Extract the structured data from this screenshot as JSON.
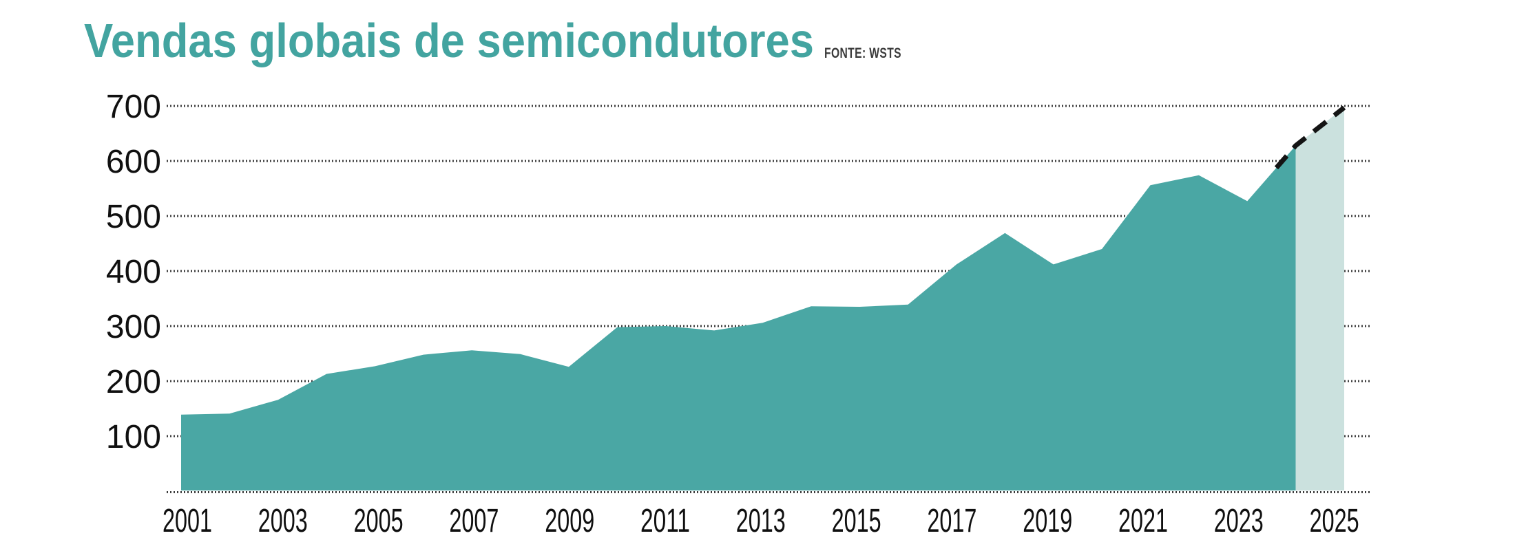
{
  "chart_data": {
    "type": "area",
    "title": "Vendas globais de semicondutores",
    "source": "FONTE: WSTS",
    "years": [
      2001,
      2002,
      2003,
      2004,
      2005,
      2006,
      2007,
      2008,
      2009,
      2010,
      2011,
      2012,
      2013,
      2014,
      2015,
      2016,
      2017,
      2018,
      2019,
      2020,
      2021,
      2022,
      2023,
      2024,
      2025
    ],
    "values": [
      139,
      141,
      166,
      213,
      227,
      248,
      256,
      249,
      226,
      298,
      300,
      292,
      306,
      336,
      335,
      339,
      412,
      469,
      412,
      440,
      556,
      574,
      527,
      628,
      697
    ],
    "actual_through_year": 2024,
    "forecast_years": [
      2025
    ],
    "forecast_style": "lighter shaded area with black dashed line along its top edge",
    "x_tick_labels": [
      "2001",
      "2003",
      "2005",
      "2007",
      "2009",
      "2011",
      "2013",
      "2015",
      "2017",
      "2019",
      "2021",
      "2023",
      "2025"
    ],
    "y_tick_labels": [
      "100",
      "200",
      "300",
      "400",
      "500",
      "600",
      "700"
    ],
    "ylim": [
      0,
      700
    ],
    "grid": "dotted-horizontal",
    "legend": "none",
    "colors": {
      "area_actual": "#4aa7a4",
      "area_forecast": "#cbe1de",
      "dashed_line": "#141414",
      "grid_dots": "#3d3d3d",
      "axis_text": "#101010",
      "title": "#43a4a0",
      "source_text": "#3c3c3c"
    }
  }
}
